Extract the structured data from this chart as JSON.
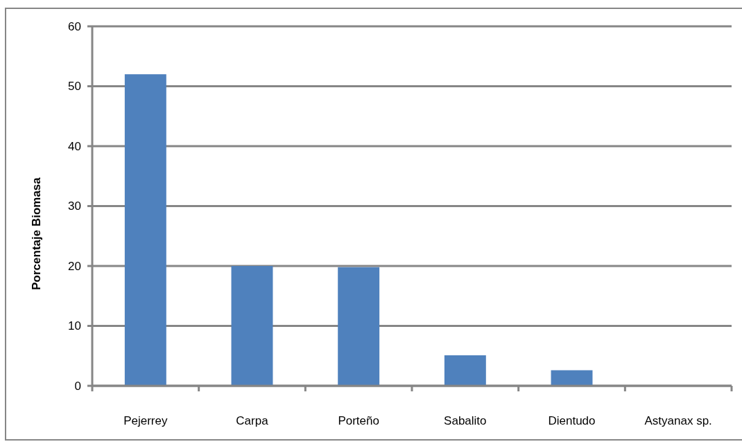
{
  "chart_data": {
    "type": "bar",
    "ylabel": "Porcentaje Biomasa",
    "categories": [
      "Pejerrey",
      "Carpa",
      "Porteño",
      "Sabalito",
      "Dientudo",
      "Astyanax sp."
    ],
    "values": [
      52,
      20,
      19.8,
      5.1,
      2.6,
      0
    ],
    "color": "#4f81bd",
    "ylim": [
      0,
      60
    ],
    "yticks": [
      0,
      10,
      20,
      30,
      40,
      50,
      60
    ],
    "grid": "y"
  }
}
